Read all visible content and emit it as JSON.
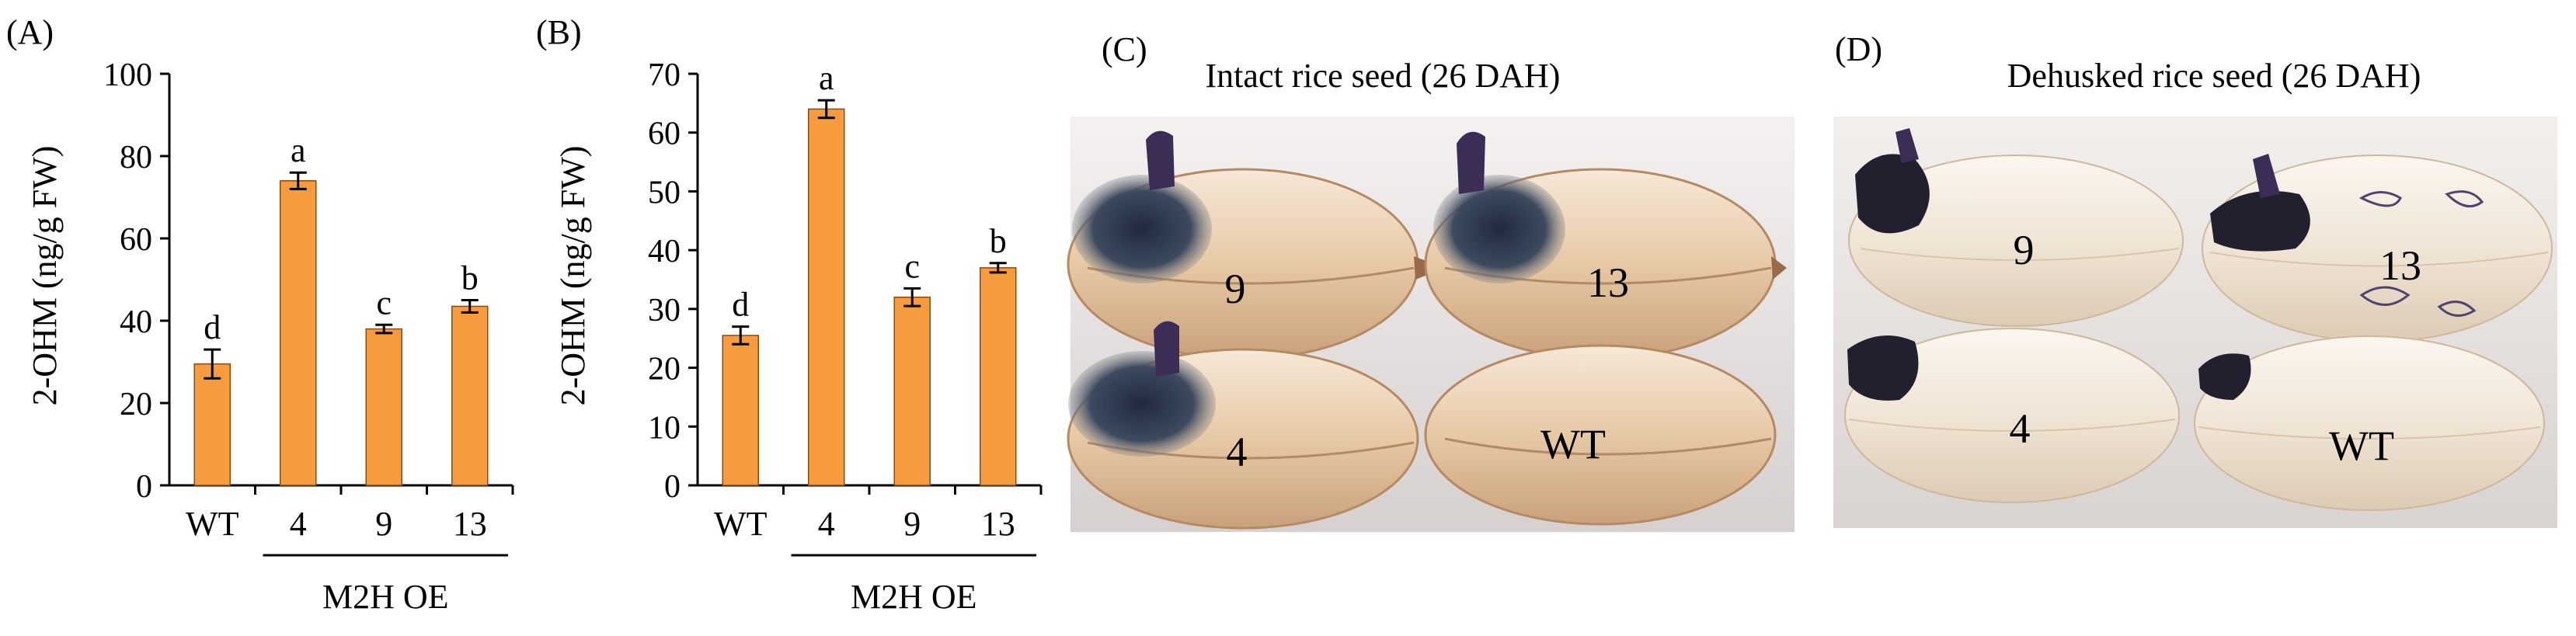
{
  "figure": {
    "panels": [
      {
        "id": "A",
        "label": "(A)"
      },
      {
        "id": "B",
        "label": "(B)"
      },
      {
        "id": "C",
        "label": "(C)",
        "title": "Intact rice seed (26 DAH)",
        "seed_labels": [
          "9",
          "13",
          "4",
          "WT"
        ]
      },
      {
        "id": "D",
        "label": "(D)",
        "title": "Dehusked rice seed (26 DAH)",
        "seed_labels": [
          "9",
          "13",
          "4",
          "WT"
        ]
      }
    ]
  },
  "chart_data": [
    {
      "panel": "A",
      "type": "bar",
      "ylabel": "2-OHM (ng/g FW)",
      "xlabel": "",
      "categories": [
        "WT",
        "4",
        "9",
        "13"
      ],
      "group_label": "M2H OE",
      "values": [
        29.5,
        74,
        38,
        43.5
      ],
      "errors": [
        3.5,
        2,
        1,
        1.5
      ],
      "significance": [
        "d",
        "a",
        "c",
        "b"
      ],
      "ylim": [
        0,
        100
      ],
      "yticks": [
        0,
        20,
        40,
        60,
        80,
        100
      ],
      "bar_color": "#F79B3F",
      "grid": false
    },
    {
      "panel": "B",
      "type": "bar",
      "ylabel": "2-OHM (ng/g FW)",
      "xlabel": "",
      "categories": [
        "WT",
        "4",
        "9",
        "13"
      ],
      "group_label": "M2H OE",
      "values": [
        25.5,
        64,
        32,
        37
      ],
      "errors": [
        1.5,
        1.5,
        1.5,
        0.8
      ],
      "significance": [
        "d",
        "a",
        "c",
        "b"
      ],
      "ylim": [
        0,
        70
      ],
      "yticks": [
        0,
        10,
        20,
        30,
        40,
        50,
        60,
        70
      ],
      "bar_color": "#F79B3F",
      "grid": false
    }
  ],
  "colors": {
    "bar": "#F79B3F",
    "bar_edge": "#8a4a12",
    "axis": "#000000",
    "photo_bg": "#e3dedd",
    "husk": "#e4c7a4",
    "dehusked": "#efe6da",
    "embryo_stain": "#2f3a55",
    "purple_stain": "#5a3f86"
  }
}
